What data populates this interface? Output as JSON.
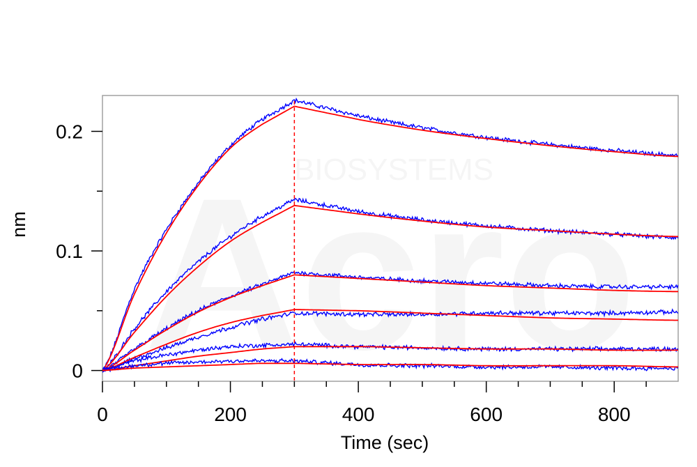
{
  "watermark": {
    "logo_text": "Acro",
    "sub_text": "BIOSYSTEMS"
  },
  "chart_data": {
    "type": "line",
    "xlabel": "Time (sec)",
    "ylabel": "nm",
    "xlim": [
      0,
      900
    ],
    "ylim": [
      -0.009,
      0.23
    ],
    "x_ticks": [
      0,
      200,
      400,
      600,
      800
    ],
    "x_tick_labels": [
      "0",
      "200",
      "400",
      "600",
      "800"
    ],
    "x_minor_ticks": [
      50,
      100,
      150,
      250,
      300,
      350,
      450,
      500,
      550,
      650,
      700,
      750,
      850
    ],
    "y_ticks": [
      0,
      0.1,
      0.2
    ],
    "y_tick_labels": [
      "0",
      "0.1",
      "0.2"
    ],
    "y_minor_ticks": [
      0.05,
      0.15
    ],
    "grid": false,
    "legend": "none",
    "dissociation_start_x": 300,
    "colors": {
      "measured": "#0000ff",
      "fit": "#ff0000",
      "marker": "#ff0000",
      "frame": "#a0a0a0"
    },
    "series": [
      {
        "x": [
          0,
          50,
          100,
          150,
          200,
          250,
          300,
          400,
          500,
          600,
          700,
          800,
          900
        ],
        "measured": [
          0,
          0.068,
          0.118,
          0.157,
          0.188,
          0.21,
          0.226,
          0.213,
          0.203,
          0.195,
          0.189,
          0.184,
          0.18
        ],
        "fit": [
          0,
          0.064,
          0.115,
          0.155,
          0.186,
          0.206,
          0.221,
          0.21,
          0.201,
          0.194,
          0.188,
          0.183,
          0.179
        ]
      },
      {
        "x": [
          0,
          50,
          100,
          150,
          200,
          250,
          300,
          400,
          500,
          600,
          700,
          800,
          900
        ],
        "measured": [
          0,
          0.035,
          0.066,
          0.091,
          0.112,
          0.129,
          0.143,
          0.133,
          0.126,
          0.121,
          0.117,
          0.114,
          0.111
        ],
        "fit": [
          0,
          0.032,
          0.062,
          0.087,
          0.108,
          0.124,
          0.138,
          0.131,
          0.125,
          0.12,
          0.117,
          0.114,
          0.112
        ]
      },
      {
        "x": [
          0,
          50,
          100,
          150,
          200,
          250,
          300,
          400,
          500,
          600,
          700,
          800,
          900
        ],
        "measured": [
          0,
          0.018,
          0.035,
          0.05,
          0.062,
          0.072,
          0.082,
          0.078,
          0.075,
          0.073,
          0.071,
          0.07,
          0.07
        ],
        "fit": [
          0,
          0.017,
          0.034,
          0.049,
          0.061,
          0.071,
          0.08,
          0.077,
          0.074,
          0.071,
          0.069,
          0.067,
          0.066
        ]
      },
      {
        "x": [
          0,
          50,
          100,
          150,
          200,
          250,
          300,
          400,
          500,
          600,
          700,
          800,
          900
        ],
        "measured": [
          0,
          0.01,
          0.019,
          0.028,
          0.036,
          0.043,
          0.048,
          0.047,
          0.047,
          0.048,
          0.048,
          0.048,
          0.049
        ],
        "fit": [
          0,
          0.011,
          0.022,
          0.032,
          0.04,
          0.046,
          0.051,
          0.05,
          0.048,
          0.046,
          0.044,
          0.043,
          0.042
        ]
      },
      {
        "x": [
          0,
          50,
          100,
          150,
          200,
          250,
          300,
          400,
          500,
          600,
          700,
          800,
          900
        ],
        "measured": [
          0,
          0.008,
          0.013,
          0.017,
          0.02,
          0.021,
          0.022,
          0.02,
          0.019,
          0.018,
          0.018,
          0.018,
          0.018
        ],
        "fit": [
          0,
          0.004,
          0.008,
          0.012,
          0.015,
          0.018,
          0.02,
          0.02,
          0.019,
          0.018,
          0.018,
          0.017,
          0.017
        ]
      },
      {
        "x": [
          0,
          50,
          100,
          150,
          200,
          250,
          300,
          400,
          500,
          600,
          700,
          800,
          900
        ],
        "measured": [
          0,
          0.004,
          0.006,
          0.007,
          0.008,
          0.008,
          0.008,
          0.005,
          0.004,
          0.003,
          0.003,
          0.002,
          0.002
        ],
        "fit": [
          0,
          0.002,
          0.003,
          0.004,
          0.005,
          0.006,
          0.006,
          0.005,
          0.005,
          0.004,
          0.004,
          0.004,
          0.003
        ]
      }
    ]
  }
}
